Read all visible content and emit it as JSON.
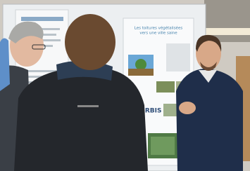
{
  "poster": {
    "title_lines": [
      "Les toitures végétalisées",
      "vers une ville saine"
    ],
    "logo": "URBIS"
  }
}
